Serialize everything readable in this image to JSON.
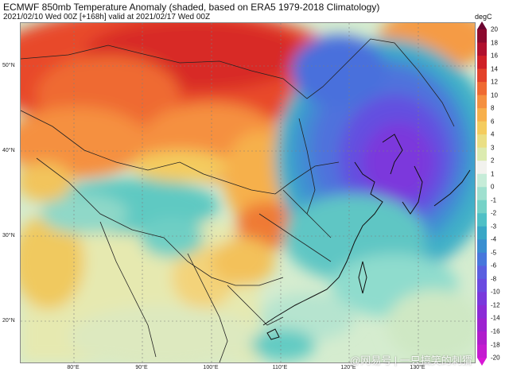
{
  "header": {
    "title": "ECMWF 850mb Temperature Anomaly (shaded, based on ERA5 1979-2018 Climatology)",
    "subtitle": "2021/02/10 Wed 00Z [+168h] valid at 2021/02/17 Wed 00Z"
  },
  "map": {
    "lat_labels": [
      "50°N",
      "40°N",
      "30°N",
      "20°N"
    ],
    "lon_labels": [
      "80°E",
      "90°E",
      "100°E",
      "110°E",
      "120°E",
      "130°E"
    ]
  },
  "colorbar": {
    "unit": "degC",
    "ticks": [
      "20",
      "18",
      "16",
      "14",
      "12",
      "10",
      "8",
      "6",
      "4",
      "3",
      "2",
      "1",
      "0",
      "-1",
      "-2",
      "-3",
      "-4",
      "-5",
      "-6",
      "-8",
      "-10",
      "-12",
      "-14",
      "-16",
      "-18",
      "-20"
    ],
    "colors": [
      "#8c0a2e",
      "#b0102e",
      "#cf2027",
      "#e3422a",
      "#ef6a32",
      "#f59040",
      "#f7b04c",
      "#f4cc5e",
      "#eadf84",
      "#dcebb0",
      "#f2f2ee",
      "#c6ecd8",
      "#9fe0cf",
      "#75d2c7",
      "#4fc0c6",
      "#39a7c6",
      "#3a8fd0",
      "#4777dc",
      "#5a5fe0",
      "#6a4ae0",
      "#7a38dc",
      "#8b2bd6",
      "#9d22d0",
      "#b01dcc",
      "#c41bd0"
    ],
    "top_color": "#6b0530",
    "bottom_color": "#d816d6"
  },
  "watermark": {
    "text": "@网易号 | 一只搞笑的刺猬"
  }
}
